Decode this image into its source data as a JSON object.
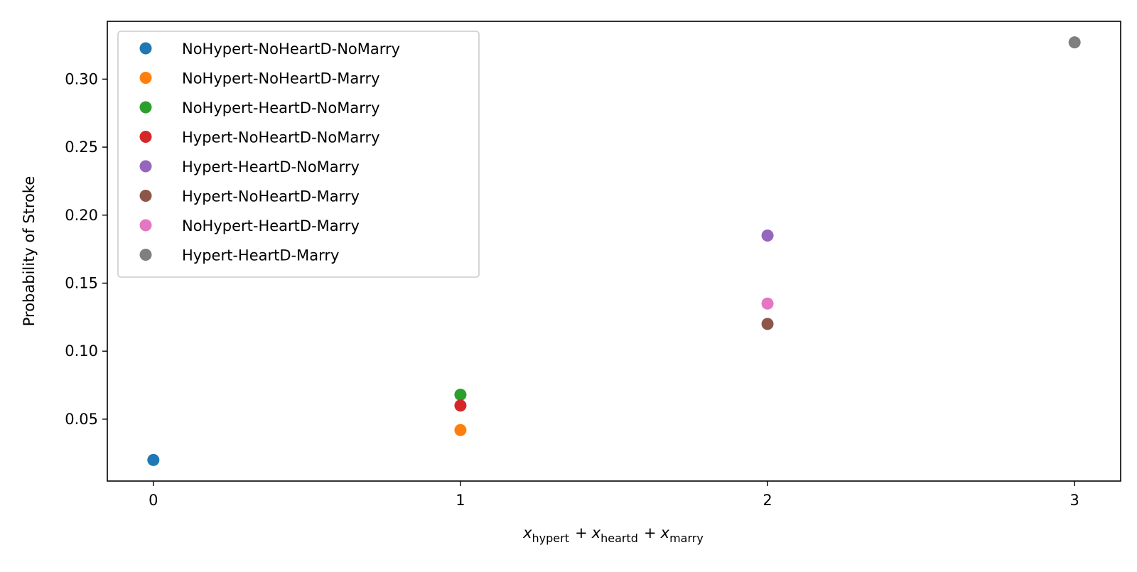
{
  "chart_data": {
    "type": "scatter",
    "xlabel": {
      "parts": [
        {
          "text": "x",
          "sub": "hypert"
        },
        {
          "op": "+"
        },
        {
          "text": "x",
          "sub": "heartd"
        },
        {
          "op": "+"
        },
        {
          "text": "x",
          "sub": "marry"
        }
      ]
    },
    "ylabel": "Probability of Stroke",
    "xlim": [
      -0.15,
      3.15
    ],
    "ylim": [
      0.0045,
      0.3425
    ],
    "xticks": [
      0,
      1,
      2,
      3
    ],
    "xtick_labels": [
      "0",
      "1",
      "2",
      "3"
    ],
    "yticks": [
      0.05,
      0.1,
      0.15,
      0.2,
      0.25,
      0.3
    ],
    "ytick_labels": [
      "0.05",
      "0.10",
      "0.15",
      "0.20",
      "0.25",
      "0.30"
    ],
    "grid": false,
    "legend_position": "top-left",
    "series": [
      {
        "name": "NoHypert-NoHeartD-NoMarry",
        "color": "#1f77b4",
        "points": [
          {
            "x": 0,
            "y": 0.02
          }
        ]
      },
      {
        "name": "NoHypert-NoHeartD-Marry",
        "color": "#ff7f0e",
        "points": [
          {
            "x": 1,
            "y": 0.042
          }
        ]
      },
      {
        "name": "NoHypert-HeartD-NoMarry",
        "color": "#2ca02c",
        "points": [
          {
            "x": 1,
            "y": 0.068
          }
        ]
      },
      {
        "name": "Hypert-NoHeartD-NoMarry",
        "color": "#d62728",
        "points": [
          {
            "x": 1,
            "y": 0.06
          }
        ]
      },
      {
        "name": "Hypert-HeartD-NoMarry",
        "color": "#9467bd",
        "points": [
          {
            "x": 2,
            "y": 0.185
          }
        ]
      },
      {
        "name": "Hypert-NoHeartD-Marry",
        "color": "#8c564b",
        "points": [
          {
            "x": 2,
            "y": 0.12
          }
        ]
      },
      {
        "name": "NoHypert-HeartD-Marry",
        "color": "#e377c2",
        "points": [
          {
            "x": 2,
            "y": 0.135
          }
        ]
      },
      {
        "name": "Hypert-HeartD-Marry",
        "color": "#7f7f7f",
        "points": [
          {
            "x": 3,
            "y": 0.327
          }
        ]
      }
    ]
  }
}
